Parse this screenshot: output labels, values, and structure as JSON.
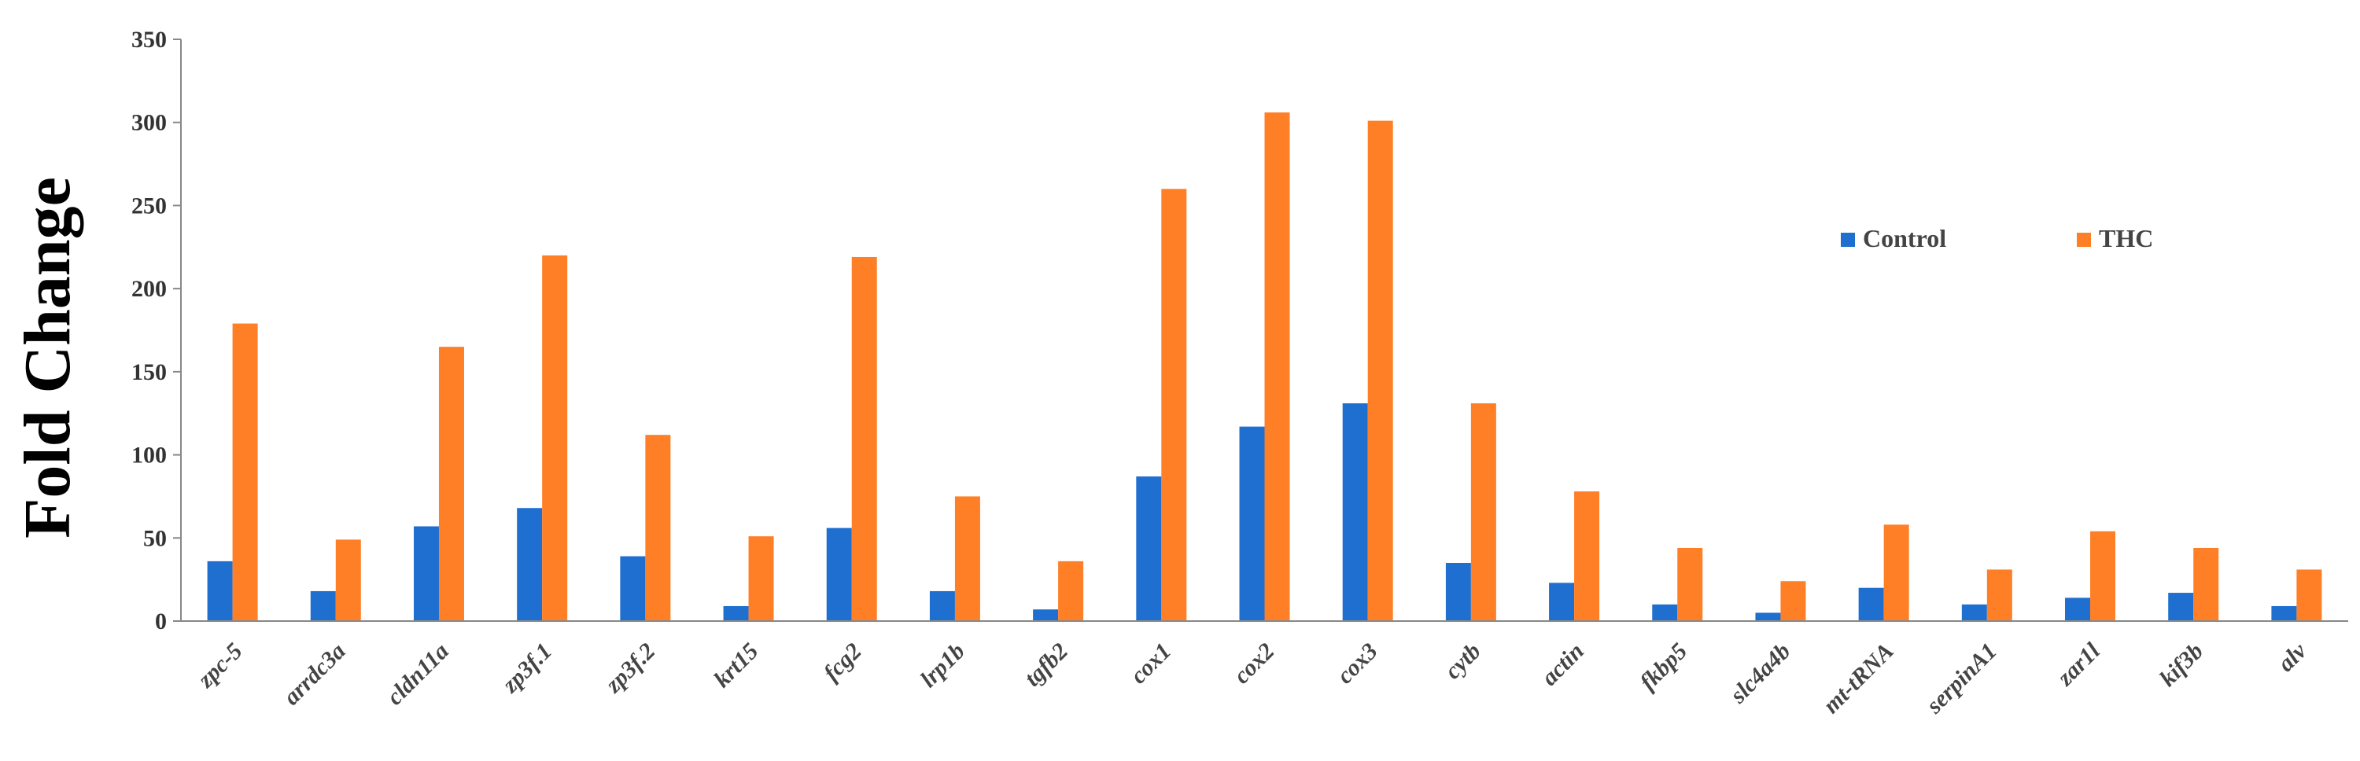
{
  "chart_data": {
    "type": "bar",
    "title": "",
    "xlabel": "",
    "ylabel": "Fold Change",
    "ylim": [
      0,
      350
    ],
    "yticks": [
      0,
      50,
      100,
      150,
      200,
      250,
      300,
      350
    ],
    "grid": false,
    "legend_position": "top-right",
    "categories": [
      "zpc-5",
      "arrdc3a",
      "cldn11a",
      "zp3f.1",
      "zp3f.2",
      "krt15",
      "fcg2",
      "lrp1b",
      "tgfb2",
      "cox1",
      "cox2",
      "cox3",
      "cytb",
      "actin",
      "fkbp5",
      "slc4a4b",
      "mt-tRNA",
      "serpinA1",
      "zar1l",
      "kif3b",
      "alv"
    ],
    "series": [
      {
        "name": "Control",
        "color": "#1F6FD1",
        "values": [
          36,
          18,
          57,
          68,
          39,
          9,
          56,
          18,
          7,
          87,
          117,
          131,
          35,
          23,
          10,
          5,
          20,
          10,
          14,
          17,
          9
        ]
      },
      {
        "name": "THC",
        "color": "#FF7F27",
        "values": [
          179,
          49,
          165,
          220,
          112,
          51,
          219,
          75,
          36,
          260,
          306,
          301,
          131,
          78,
          44,
          24,
          58,
          31,
          54,
          44,
          31
        ]
      }
    ]
  }
}
